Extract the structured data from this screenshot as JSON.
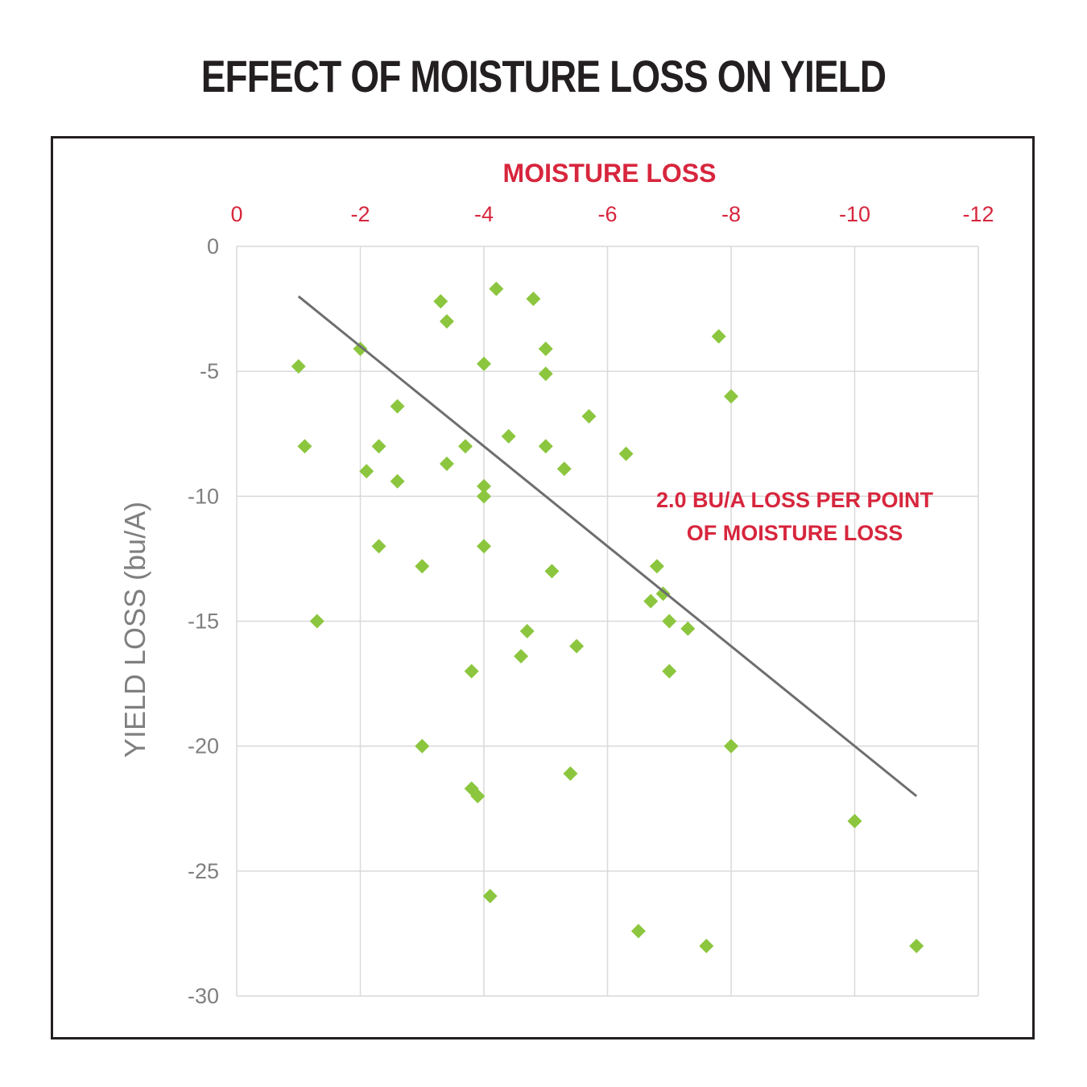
{
  "chart_data": {
    "type": "scatter",
    "title": "EFFECT OF MOISTURE LOSS ON YIELD",
    "xlabel": "MOISTURE LOSS",
    "ylabel": "YIELD LOSS  (bu/A)",
    "xlim": [
      0,
      -12
    ],
    "ylim": [
      0,
      -30
    ],
    "x_ticks": [
      "0",
      "-2",
      "-4",
      "-6",
      "-8",
      "-10",
      "-12"
    ],
    "y_ticks": [
      "0",
      "-5",
      "-10",
      "-15",
      "-20",
      "-25",
      "-30"
    ],
    "grid": true,
    "x_axis_position": "top",
    "annotation": [
      "2.0 BU/A LOSS PER POINT",
      "OF MOISTURE LOSS"
    ],
    "trendline": {
      "x": [
        -1,
        -11
      ],
      "y": [
        -2,
        -22
      ]
    },
    "series": [
      {
        "marker_color": "#8cc63f",
        "points": [
          [
            -1.0,
            -4.8
          ],
          [
            -1.1,
            -8.0
          ],
          [
            -1.3,
            -15.0
          ],
          [
            -2.0,
            -4.1
          ],
          [
            -2.1,
            -9.0
          ],
          [
            -2.3,
            -8.0
          ],
          [
            -2.3,
            -12.0
          ],
          [
            -2.6,
            -6.4
          ],
          [
            -2.6,
            -9.4
          ],
          [
            -3.0,
            -12.8
          ],
          [
            -3.0,
            -20.0
          ],
          [
            -3.3,
            -2.2
          ],
          [
            -3.4,
            -3.0
          ],
          [
            -3.4,
            -8.7
          ],
          [
            -3.7,
            -8.0
          ],
          [
            -3.8,
            -17.0
          ],
          [
            -3.8,
            -21.7
          ],
          [
            -3.9,
            -22.0
          ],
          [
            -4.0,
            -4.7
          ],
          [
            -4.0,
            -9.6
          ],
          [
            -4.0,
            -10.0
          ],
          [
            -4.0,
            -12.0
          ],
          [
            -4.1,
            -26.0
          ],
          [
            -4.2,
            -1.7
          ],
          [
            -4.4,
            -7.6
          ],
          [
            -4.6,
            -16.4
          ],
          [
            -4.7,
            -15.4
          ],
          [
            -4.8,
            -2.1
          ],
          [
            -5.0,
            -4.1
          ],
          [
            -5.0,
            -5.1
          ],
          [
            -5.0,
            -8.0
          ],
          [
            -5.1,
            -13.0
          ],
          [
            -5.3,
            -8.9
          ],
          [
            -5.4,
            -21.1
          ],
          [
            -5.5,
            -16.0
          ],
          [
            -5.7,
            -6.8
          ],
          [
            -6.3,
            -8.3
          ],
          [
            -6.5,
            -27.4
          ],
          [
            -6.7,
            -14.2
          ],
          [
            -6.8,
            -12.8
          ],
          [
            -6.9,
            -13.9
          ],
          [
            -7.0,
            -15.0
          ],
          [
            -7.0,
            -17.0
          ],
          [
            -7.3,
            -15.3
          ],
          [
            -7.6,
            -28.0
          ],
          [
            -7.8,
            -3.6
          ],
          [
            -8.0,
            -6.0
          ],
          [
            -8.0,
            -20.0
          ],
          [
            -10.0,
            -23.0
          ],
          [
            -11.0,
            -28.0
          ]
        ]
      }
    ]
  }
}
